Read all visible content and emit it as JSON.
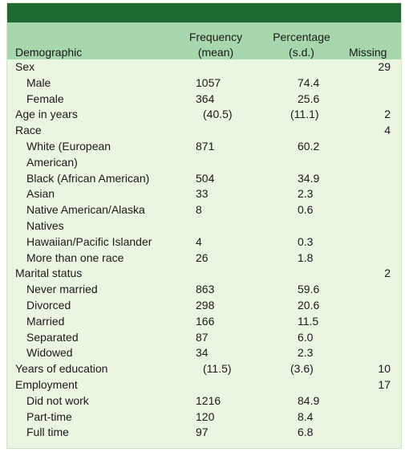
{
  "header": {
    "demographic": "Demographic",
    "frequency_line1": "Frequency",
    "frequency_line2": "(mean)",
    "percentage_line1": "Percentage",
    "percentage_line2": "(s.d.)",
    "missing": "Missing"
  },
  "rows": [
    {
      "label": "Sex",
      "freq": "",
      "pct": "",
      "missing": "29",
      "indent": false
    },
    {
      "label": "Male",
      "freq": "1057",
      "pct": "74.4",
      "missing": "",
      "indent": true
    },
    {
      "label": "Female",
      "freq": "364",
      "pct": "25.6",
      "missing": "",
      "indent": true
    },
    {
      "label": "Age in years",
      "freq": "(40.5)",
      "pct": "(11.1)",
      "missing": "2",
      "indent": false
    },
    {
      "label": "Race",
      "freq": "",
      "pct": "",
      "missing": "4",
      "indent": false
    },
    {
      "label": "White (European American)",
      "freq": "871",
      "pct": "60.2",
      "missing": "",
      "indent": true
    },
    {
      "label": "Black (African American)",
      "freq": "504",
      "pct": "34.9",
      "missing": "",
      "indent": true
    },
    {
      "label": "Asian",
      "freq": "33",
      "pct": "2.3",
      "missing": "",
      "indent": true
    },
    {
      "label": "Native American/Alaska Natives",
      "freq": "8",
      "pct": "0.6",
      "missing": "",
      "indent": true
    },
    {
      "label": "Hawaiian/Pacific Islander",
      "freq": "4",
      "pct": "0.3",
      "missing": "",
      "indent": true
    },
    {
      "label": "More than one race",
      "freq": "26",
      "pct": "1.8",
      "missing": "",
      "indent": true
    },
    {
      "label": "Marital status",
      "freq": "",
      "pct": "",
      "missing": "2",
      "indent": false
    },
    {
      "label": "Never married",
      "freq": "863",
      "pct": "59.6",
      "missing": "",
      "indent": true
    },
    {
      "label": "Divorced",
      "freq": "298",
      "pct": "20.6",
      "missing": "",
      "indent": true
    },
    {
      "label": "Married",
      "freq": "166",
      "pct": "11.5",
      "missing": "",
      "indent": true
    },
    {
      "label": "Separated",
      "freq": "87",
      "pct": "6.0",
      "missing": "",
      "indent": true
    },
    {
      "label": "Widowed",
      "freq": "34",
      "pct": "2.3",
      "missing": "",
      "indent": true
    },
    {
      "label": "Years of education",
      "freq": "(11.5)",
      "pct": "(3.6)",
      "missing": "10",
      "indent": false
    },
    {
      "label": "Employment",
      "freq": "",
      "pct": "",
      "missing": "17",
      "indent": false
    },
    {
      "label": "Did not work",
      "freq": "1216",
      "pct": "84.9",
      "missing": "",
      "indent": true
    },
    {
      "label": "Part-time",
      "freq": "120",
      "pct": "8.4",
      "missing": "",
      "indent": true
    },
    {
      "label": "Full time",
      "freq": "97",
      "pct": "6.8",
      "missing": "",
      "indent": true
    }
  ]
}
